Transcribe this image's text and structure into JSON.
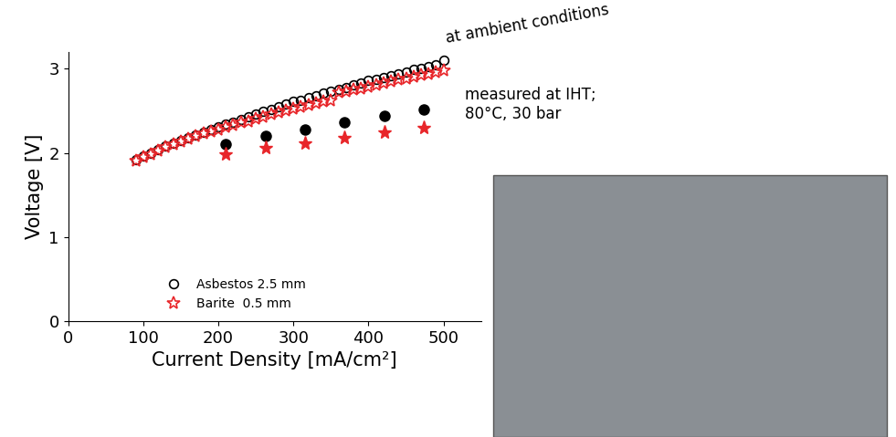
{
  "chart_data": {
    "type": "scatter",
    "x_label": "Current Density [mA/cm²]",
    "y_label": "Voltage [V]",
    "xlim": [
      0,
      550
    ],
    "xticks": [
      0,
      100,
      200,
      300,
      400,
      500
    ],
    "ylim": [
      0,
      3.2
    ],
    "yticks": [
      0,
      1,
      2,
      3
    ],
    "legend": "lower center",
    "annotations": [
      "at ambient conditions",
      "measured at IHT;\n80°C, 30 bar"
    ],
    "series": [
      {
        "name": "Asbestos 2.5 mm",
        "color": "#000000",
        "marker": "o",
        "ambient": {
          "x": [
            90,
            100,
            110,
            120,
            130,
            140,
            150,
            160,
            170,
            180,
            190,
            200,
            210,
            220,
            230,
            240,
            250,
            260,
            270,
            280,
            290,
            300,
            310,
            320,
            330,
            340,
            350,
            360,
            370,
            380,
            390,
            400,
            410,
            420,
            430,
            440,
            450,
            460,
            470,
            480,
            490,
            500
          ],
          "values": [
            1.92,
            1.96,
            2.0,
            2.04,
            2.08,
            2.12,
            2.15,
            2.18,
            2.21,
            2.25,
            2.28,
            2.31,
            2.34,
            2.37,
            2.4,
            2.43,
            2.46,
            2.49,
            2.52,
            2.55,
            2.58,
            2.61,
            2.63,
            2.66,
            2.68,
            2.71,
            2.73,
            2.76,
            2.78,
            2.81,
            2.83,
            2.86,
            2.88,
            2.9,
            2.92,
            2.94,
            2.96,
            2.99,
            3.01,
            3.03,
            3.05,
            3.1
          ]
        },
        "iht": {
          "x": [
            210,
            263,
            315,
            368,
            421,
            474
          ],
          "values": [
            2.11,
            2.2,
            2.28,
            2.36,
            2.44,
            2.52
          ]
        }
      },
      {
        "name": "Barite  0.5 mm",
        "color": "#e8262a",
        "marker": "*",
        "ambient": {
          "x": [
            90,
            100,
            110,
            120,
            130,
            140,
            150,
            160,
            170,
            180,
            190,
            200,
            210,
            220,
            230,
            240,
            250,
            260,
            270,
            280,
            290,
            300,
            310,
            320,
            330,
            340,
            350,
            360,
            370,
            380,
            390,
            400,
            410,
            420,
            430,
            440,
            450,
            460,
            470,
            480,
            490,
            500
          ],
          "values": [
            1.91,
            1.95,
            1.99,
            2.03,
            2.07,
            2.11,
            2.14,
            2.17,
            2.2,
            2.23,
            2.26,
            2.28,
            2.31,
            2.33,
            2.36,
            2.38,
            2.41,
            2.43,
            2.46,
            2.48,
            2.51,
            2.53,
            2.55,
            2.57,
            2.59,
            2.61,
            2.63,
            2.72,
            2.73,
            2.75,
            2.77,
            2.79,
            2.81,
            2.83,
            2.85,
            2.87,
            2.89,
            2.91,
            2.93,
            2.94,
            2.96,
            2.98
          ]
        },
        "iht": {
          "x": [
            210,
            263,
            315,
            368,
            421,
            474
          ],
          "values": [
            1.99,
            2.06,
            2.12,
            2.18,
            2.25,
            2.3
          ]
        }
      }
    ]
  }
}
